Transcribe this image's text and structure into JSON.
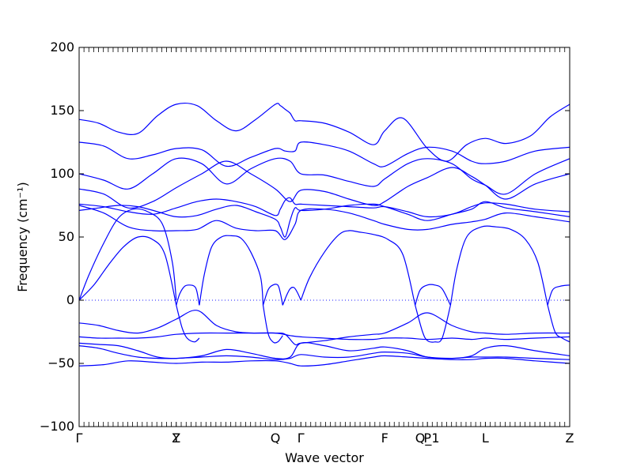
{
  "chart_data": {
    "type": "line",
    "title": "",
    "xlabel": "Wave vector",
    "ylabel": "Frequency (cm⁻¹)",
    "ylim": [
      -100,
      200
    ],
    "y_ticks": [
      -100,
      -50,
      0,
      50,
      100,
      150,
      200
    ],
    "x_range": [
      0,
      1
    ],
    "high_symmetry_points": [
      {
        "label": "Γ",
        "x": 0.0
      },
      {
        "label": "Y",
        "x": 0.198
      },
      {
        "label": "Z",
        "x": 0.198
      },
      {
        "label": "Q",
        "x": 0.4
      },
      {
        "label": "Γ",
        "x": 0.452
      },
      {
        "label": "F",
        "x": 0.623
      },
      {
        "label": "P",
        "x": 0.71
      },
      {
        "label": "Q_1",
        "x": 0.71
      },
      {
        "label": "L",
        "x": 0.828
      },
      {
        "label": "Z",
        "x": 1.0
      }
    ],
    "zero_line": true,
    "line_color": "#0000ff",
    "series": [
      {
        "x": [
          0,
          0.04,
          0.08,
          0.12,
          0.16,
          0.198,
          0.24,
          0.28,
          0.32,
          0.36,
          0.4,
          0.41,
          0.42,
          0.43,
          0.44,
          0.452,
          0.5,
          0.55,
          0.6,
          0.623,
          0.66,
          0.71,
          0.75,
          0.79,
          0.828,
          0.87,
          0.92,
          0.96,
          1.0
        ],
        "y": [
          143,
          140,
          133,
          132,
          146,
          155,
          154,
          142,
          134,
          143,
          155,
          154,
          151,
          148,
          142,
          142,
          140,
          133,
          123,
          134,
          144,
          120,
          110,
          123,
          128,
          124,
          130,
          145,
          155
        ]
      },
      {
        "x": [
          0,
          0.05,
          0.1,
          0.15,
          0.198,
          0.25,
          0.3,
          0.35,
          0.4,
          0.42,
          0.44,
          0.452,
          0.5,
          0.55,
          0.6,
          0.623,
          0.67,
          0.71,
          0.76,
          0.8,
          0.828,
          0.87,
          0.93,
          1.0
        ],
        "y": [
          125,
          122,
          112,
          115,
          120,
          119,
          106,
          113,
          120,
          118,
          118,
          125,
          123,
          118,
          108,
          106,
          116,
          121,
          118,
          110,
          108,
          110,
          118,
          121
        ]
      },
      {
        "x": [
          0,
          0.05,
          0.1,
          0.15,
          0.198,
          0.25,
          0.3,
          0.35,
          0.4,
          0.43,
          0.452,
          0.5,
          0.55,
          0.6,
          0.623,
          0.67,
          0.71,
          0.76,
          0.8,
          0.828,
          0.87,
          0.93,
          1.0
        ],
        "y": [
          100,
          95,
          88,
          100,
          112,
          108,
          92,
          104,
          112,
          110,
          100,
          99,
          94,
          90,
          96,
          108,
          112,
          108,
          96,
          91,
          84,
          100,
          112
        ]
      },
      {
        "x": [
          0,
          0.05,
          0.1,
          0.15,
          0.198,
          0.25,
          0.3,
          0.35,
          0.4,
          0.43,
          0.452,
          0.5,
          0.55,
          0.6,
          0.623,
          0.67,
          0.71,
          0.76,
          0.8,
          0.828,
          0.87,
          0.93,
          1.0
        ],
        "y": [
          88,
          84,
          73,
          78,
          89,
          100,
          110,
          100,
          88,
          78,
          87,
          86,
          80,
          75,
          78,
          90,
          97,
          105,
          98,
          91,
          80,
          92,
          100
        ]
      },
      {
        "x": [
          0,
          0.05,
          0.1,
          0.15,
          0.198,
          0.24,
          0.28,
          0.32,
          0.36,
          0.4,
          0.41,
          0.42,
          0.43,
          0.44,
          0.452,
          0.5,
          0.55,
          0.6,
          0.623,
          0.67,
          0.71,
          0.76,
          0.8,
          0.828,
          0.87,
          0.93,
          1.0
        ],
        "y": [
          76,
          74,
          70,
          68,
          73,
          78,
          80,
          78,
          74,
          67,
          72,
          79,
          81,
          76,
          76,
          75,
          74,
          73,
          74,
          70,
          66,
          68,
          74,
          77,
          76,
          72,
          70
        ]
      },
      {
        "x": [
          0,
          0.04,
          0.08,
          0.12,
          0.16,
          0.198,
          0.24,
          0.28,
          0.32,
          0.36,
          0.4,
          0.41,
          0.42,
          0.43,
          0.44,
          0.452,
          0.5,
          0.55,
          0.6,
          0.623,
          0.67,
          0.71,
          0.76,
          0.8,
          0.828,
          0.87,
          0.93,
          1.0
        ],
        "y": [
          71,
          73,
          75,
          74,
          70,
          66,
          67,
          72,
          75,
          70,
          64,
          58,
          50,
          63,
          73,
          71,
          72,
          75,
          76,
          74,
          68,
          63,
          68,
          72,
          78,
          73,
          70,
          66
        ]
      },
      {
        "x": [
          0,
          0.05,
          0.1,
          0.15,
          0.198,
          0.24,
          0.28,
          0.32,
          0.36,
          0.4,
          0.42,
          0.44,
          0.452,
          0.5,
          0.55,
          0.6,
          0.623,
          0.67,
          0.71,
          0.76,
          0.8,
          0.828,
          0.87,
          0.93,
          1.0
        ],
        "y": [
          75,
          69,
          58,
          55,
          55,
          56,
          63,
          57,
          55,
          55,
          48,
          60,
          71,
          72,
          69,
          63,
          60,
          56,
          56,
          60,
          62,
          64,
          69,
          66,
          62
        ]
      },
      {
        "x": [
          0,
          0.02,
          0.05,
          0.08,
          0.11,
          0.14,
          0.17,
          0.19,
          0.198
        ],
        "y": [
          0,
          20,
          45,
          65,
          72,
          70,
          60,
          30,
          0
        ]
      },
      {
        "x": [
          0,
          0.03,
          0.06,
          0.09,
          0.12,
          0.15,
          0.175,
          0.198
        ],
        "y": [
          0,
          12,
          28,
          42,
          50,
          48,
          36,
          -4
        ]
      },
      {
        "x": [
          0.198,
          0.205,
          0.215,
          0.225,
          0.235,
          0.24,
          0.245
        ],
        "y": [
          -4,
          5,
          11,
          12,
          11,
          7,
          -4
        ]
      },
      {
        "x": [
          0.245,
          0.255,
          0.27,
          0.29,
          0.31,
          0.33,
          0.35,
          0.37,
          0.375
        ],
        "y": [
          -4,
          20,
          42,
          50,
          51,
          49,
          38,
          18,
          -4
        ]
      },
      {
        "x": [
          0.375,
          0.385,
          0.395,
          0.405,
          0.41,
          0.415
        ],
        "y": [
          -4,
          8,
          12,
          12,
          6,
          -4
        ]
      },
      {
        "x": [
          0.415,
          0.422,
          0.43,
          0.438,
          0.445,
          0.452
        ],
        "y": [
          -4,
          3,
          9,
          10,
          6,
          0
        ]
      },
      {
        "x": [
          0.452,
          0.47,
          0.5,
          0.53,
          0.55,
          0.57,
          0.6,
          0.63,
          0.66,
          0.685
        ],
        "y": [
          0,
          18,
          38,
          52,
          55,
          54,
          52,
          48,
          36,
          -4
        ]
      },
      {
        "x": [
          0.685,
          0.695,
          0.71,
          0.725,
          0.74,
          0.757
        ],
        "y": [
          -4,
          8,
          12,
          12,
          9,
          -4
        ]
      },
      {
        "x": [
          0.757,
          0.77,
          0.79,
          0.82,
          0.85,
          0.88,
          0.91,
          0.935,
          0.955
        ],
        "y": [
          -4,
          25,
          50,
          58,
          58,
          56,
          48,
          30,
          -4
        ]
      },
      {
        "x": [
          0.955,
          0.965,
          0.98,
          1.0
        ],
        "y": [
          -4,
          8,
          11,
          12
        ]
      },
      {
        "x": [
          0,
          0.04,
          0.08,
          0.12,
          0.16,
          0.198,
          0.24,
          0.28,
          0.32,
          0.36,
          0.4,
          0.42,
          0.44,
          0.452,
          0.5,
          0.55,
          0.6,
          0.623,
          0.67,
          0.71,
          0.76,
          0.8,
          0.828,
          0.87,
          0.93,
          1.0
        ],
        "y": [
          -18,
          -20,
          -24,
          -26,
          -22,
          -15,
          -8,
          -20,
          -25,
          -26,
          -26,
          -27,
          -35,
          -34,
          -32,
          -29,
          -27,
          -26,
          -18,
          -10,
          -20,
          -25,
          -26,
          -27,
          -26,
          -26
        ]
      },
      {
        "x": [
          0.198,
          0.21,
          0.22,
          0.235,
          0.245
        ],
        "y": [
          -4,
          -22,
          -30,
          -33,
          -30
        ]
      },
      {
        "x": [
          0.375,
          0.385,
          0.395,
          0.405,
          0.415
        ],
        "y": [
          -4,
          -26,
          -33,
          -33,
          -28
        ]
      },
      {
        "x": [
          0.685,
          0.7,
          0.71,
          0.725,
          0.74,
          0.757
        ],
        "y": [
          -4,
          -25,
          -32,
          -33,
          -30,
          -4
        ]
      },
      {
        "x": [
          0.955,
          0.97,
          0.985,
          1.0
        ],
        "y": [
          -4,
          -25,
          -30,
          -33
        ]
      },
      {
        "x": [
          0,
          0.04,
          0.08,
          0.12,
          0.16,
          0.198,
          0.25,
          0.3,
          0.35,
          0.4,
          0.43,
          0.452,
          0.5,
          0.55,
          0.6,
          0.623,
          0.67,
          0.71,
          0.76,
          0.8,
          0.828,
          0.87,
          0.93,
          1.0
        ],
        "y": [
          -29,
          -30,
          -30,
          -30,
          -29,
          -27,
          -26,
          -26,
          -26,
          -26,
          -28,
          -29,
          -30,
          -31,
          -31,
          -30,
          -30,
          -31,
          -30,
          -31,
          -30,
          -31,
          -30,
          -29
        ]
      },
      {
        "x": [
          0,
          0.04,
          0.08,
          0.12,
          0.16,
          0.198,
          0.25,
          0.3,
          0.35,
          0.4,
          0.43,
          0.452,
          0.5,
          0.55,
          0.6,
          0.623,
          0.67,
          0.71,
          0.76,
          0.8,
          0.828,
          0.87,
          0.93,
          1.0
        ],
        "y": [
          -34,
          -35,
          -36,
          -40,
          -45,
          -46,
          -44,
          -39,
          -42,
          -46,
          -45,
          -34,
          -36,
          -40,
          -38,
          -37,
          -40,
          -45,
          -46,
          -44,
          -38,
          -36,
          -40,
          -44
        ]
      },
      {
        "x": [
          0,
          0.04,
          0.08,
          0.12,
          0.16,
          0.198,
          0.25,
          0.3,
          0.35,
          0.4,
          0.43,
          0.452,
          0.5,
          0.55,
          0.6,
          0.623,
          0.67,
          0.71,
          0.76,
          0.8,
          0.828,
          0.87,
          0.93,
          1.0
        ],
        "y": [
          -36,
          -38,
          -42,
          -45,
          -46,
          -46,
          -45,
          -44,
          -45,
          -47,
          -46,
          -43,
          -45,
          -45,
          -42,
          -41,
          -42,
          -45,
          -46,
          -45,
          -45,
          -45,
          -46,
          -47
        ]
      },
      {
        "x": [
          0,
          0.05,
          0.1,
          0.15,
          0.198,
          0.25,
          0.3,
          0.35,
          0.4,
          0.43,
          0.452,
          0.5,
          0.55,
          0.6,
          0.623,
          0.67,
          0.71,
          0.76,
          0.8,
          0.828,
          0.87,
          0.93,
          1.0
        ],
        "y": [
          -52,
          -51,
          -48,
          -49,
          -50,
          -49,
          -49,
          -48,
          -48,
          -50,
          -52,
          -51,
          -48,
          -45,
          -44,
          -45,
          -46,
          -47,
          -47,
          -46,
          -46,
          -48,
          -50
        ]
      }
    ]
  }
}
